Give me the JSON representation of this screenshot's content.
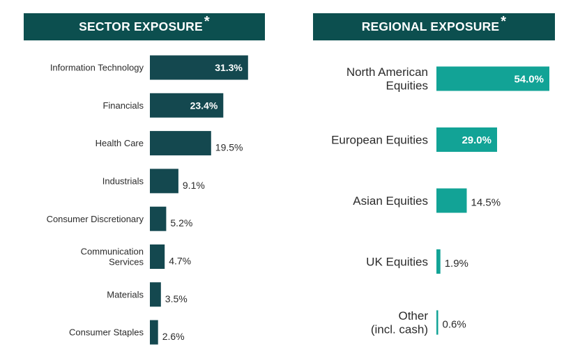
{
  "colors": {
    "header_bg": "#0c4f4f",
    "header_text": "#ffffff",
    "sector_bar": "#14484f",
    "region_bar": "#12a396",
    "label_text": "#2b2b2b"
  },
  "sector": {
    "title": "SECTOR EXPOSURE",
    "title_mark": "*"
  },
  "region": {
    "title": "REGIONAL EXPOSURE",
    "title_mark": "*"
  },
  "chart_data": [
    {
      "type": "bar",
      "orientation": "horizontal",
      "title": "SECTOR EXPOSURE*",
      "categories": [
        [
          "Information Technology"
        ],
        [
          "Financials"
        ],
        [
          "Health Care"
        ],
        [
          "Industrials"
        ],
        [
          "Consumer Discretionary"
        ],
        [
          "Communication",
          "Services"
        ],
        [
          "Materials"
        ],
        [
          "Consumer Staples"
        ]
      ],
      "values": [
        31.3,
        23.4,
        19.5,
        9.1,
        5.2,
        4.7,
        3.5,
        2.6
      ],
      "value_labels": [
        "31.3%",
        "23.4%",
        "19.5%",
        "9.1%",
        "5.2%",
        "4.7%",
        "3.5%",
        "2.6%"
      ],
      "unit": "%"
    },
    {
      "type": "bar",
      "orientation": "horizontal",
      "title": "REGIONAL EXPOSURE*",
      "categories": [
        [
          "North American",
          "Equities"
        ],
        [
          "European Equities"
        ],
        [
          "Asian Equities"
        ],
        [
          "UK Equities"
        ],
        [
          "Other",
          "(incl. cash)"
        ]
      ],
      "values": [
        54.0,
        29.0,
        14.5,
        1.9,
        0.6
      ],
      "value_labels": [
        "54.0%",
        "29.0%",
        "14.5%",
        "1.9%",
        "0.6%"
      ],
      "unit": "%"
    }
  ]
}
